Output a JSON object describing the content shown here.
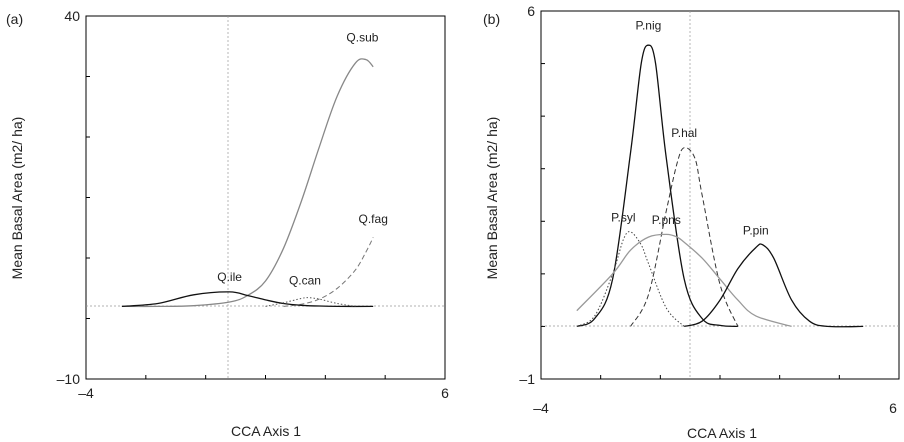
{
  "chart_data": [
    {
      "panel": "(a)",
      "type": "line",
      "xlabel": "CCA Axis 1",
      "ylabel": "Mean Basal Area (m2/ ha)",
      "xlim": [
        -4,
        6
      ],
      "ylim": [
        -10,
        40
      ],
      "xticklabels": [
        "–4",
        "6"
      ],
      "yticklabels": [
        "40",
        "–10"
      ],
      "grid": false,
      "series": [
        {
          "name": "Q.sub",
          "style": "solid",
          "color": "#888888",
          "x": [
            -3.0,
            -2.0,
            -1.0,
            0.0,
            0.5,
            1.0,
            1.5,
            2.0,
            2.5,
            3.0,
            3.5,
            3.8,
            4.0
          ],
          "y": [
            0,
            0,
            0.1,
            0.6,
            1.5,
            3.5,
            8.0,
            14.5,
            22.0,
            29.0,
            33.5,
            34.0,
            33.0
          ]
        },
        {
          "name": "Q.fag",
          "style": "dashed",
          "color": "#777777",
          "x": [
            1.5,
            2.0,
            2.5,
            3.0,
            3.5,
            3.8,
            4.0
          ],
          "y": [
            0,
            0.3,
            1.0,
            2.5,
            5.0,
            7.5,
            9.5
          ]
        },
        {
          "name": "Q.ile",
          "style": "solid",
          "color": "#111111",
          "x": [
            -3.0,
            -2.0,
            -1.0,
            0.0,
            0.5,
            1.0,
            1.5,
            2.0,
            2.5,
            3.0,
            4.0
          ],
          "y": [
            0,
            0.4,
            1.6,
            2.0,
            1.5,
            0.9,
            0.4,
            0.15,
            0.05,
            0,
            0
          ]
        },
        {
          "name": "Q.can",
          "style": "dotted",
          "color": "#555555",
          "x": [
            1.0,
            1.5,
            2.0,
            2.2,
            2.5,
            3.0,
            3.5
          ],
          "y": [
            0,
            0.5,
            1.1,
            1.2,
            1.0,
            0.4,
            0
          ]
        }
      ],
      "annotations": [
        {
          "text": "Q.sub",
          "x": 3.7,
          "y": 36.5
        },
        {
          "text": "Q.fag",
          "x": 4.0,
          "y": 11.5
        },
        {
          "text": "Q.ile",
          "x": 0.0,
          "y": 3.5
        },
        {
          "text": "Q.can",
          "x": 2.1,
          "y": 3.0
        }
      ]
    },
    {
      "panel": "(b)",
      "type": "line",
      "xlabel": "CCA Axis 1",
      "ylabel": "Mean Basal Area (m2/ ha)",
      "xlim": [
        -4,
        6
      ],
      "ylim": [
        -1,
        6
      ],
      "xticklabels": [
        "–4",
        "6"
      ],
      "yticklabels": [
        "6",
        "–1"
      ],
      "grid": false,
      "series": [
        {
          "name": "P.nig",
          "style": "solid",
          "color": "#111111",
          "x": [
            -3.0,
            -2.5,
            -2.0,
            -1.5,
            -1.2,
            -1.0,
            -0.8,
            -0.5,
            0.0,
            0.5,
            1.0,
            1.5
          ],
          "y": [
            0,
            0.15,
            0.9,
            3.3,
            5.0,
            5.35,
            5.0,
            3.2,
            0.9,
            0.15,
            0.02,
            0
          ]
        },
        {
          "name": "P.hal",
          "style": "dashed",
          "color": "#333333",
          "x": [
            -1.5,
            -1.0,
            -0.5,
            -0.2,
            0.0,
            0.3,
            0.5,
            1.0,
            1.5
          ],
          "y": [
            0,
            0.6,
            2.2,
            3.1,
            3.4,
            3.2,
            2.5,
            0.8,
            0
          ]
        },
        {
          "name": "P.syl",
          "style": "dotted",
          "color": "#444444",
          "x": [
            -3.0,
            -2.5,
            -2.0,
            -1.7,
            -1.5,
            -1.2,
            -1.0,
            -0.5,
            0.0
          ],
          "y": [
            0,
            0.2,
            1.0,
            1.65,
            1.8,
            1.55,
            1.2,
            0.35,
            0
          ]
        },
        {
          "name": "P.pns",
          "style": "solid",
          "color": "#999999",
          "x": [
            -3.0,
            -2.0,
            -1.5,
            -1.0,
            -0.5,
            -0.2,
            0.0,
            0.5,
            1.0,
            1.5,
            2.0,
            3.0
          ],
          "y": [
            0.3,
            1.0,
            1.45,
            1.7,
            1.75,
            1.7,
            1.6,
            1.3,
            0.9,
            0.5,
            0.2,
            0
          ]
        },
        {
          "name": "P.pin",
          "style": "solid",
          "color": "#111111",
          "x": [
            0.0,
            0.5,
            1.0,
            1.5,
            2.0,
            2.2,
            2.5,
            3.0,
            3.5,
            4.0,
            5.0
          ],
          "y": [
            0,
            0.1,
            0.5,
            1.1,
            1.5,
            1.55,
            1.3,
            0.5,
            0.1,
            0,
            0
          ]
        }
      ],
      "annotations": [
        {
          "text": "P.nig",
          "x": -1.0,
          "y": 5.65
        },
        {
          "text": "P.hal",
          "x": 0.0,
          "y": 3.6
        },
        {
          "text": "P.syl",
          "x": -1.7,
          "y": 2.0
        },
        {
          "text": "P.pns",
          "x": -0.5,
          "y": 1.95
        },
        {
          "text": "P.pin",
          "x": 2.0,
          "y": 1.75
        }
      ]
    }
  ]
}
